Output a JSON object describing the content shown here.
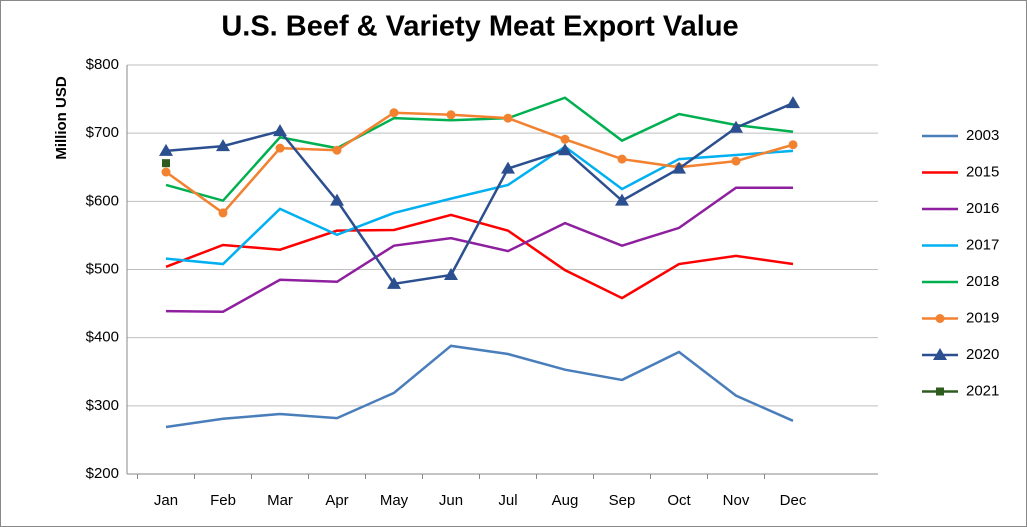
{
  "chart_data": {
    "type": "line",
    "title": "U.S. Beef & Variety Meat Export Value",
    "y_label": "Million USD",
    "categories": [
      "Jan",
      "Feb",
      "Mar",
      "Apr",
      "May",
      "Jun",
      "Jul",
      "Aug",
      "Sep",
      "Oct",
      "Nov",
      "Dec"
    ],
    "ylim": [
      200,
      800
    ],
    "yticks": [
      {
        "value": 200,
        "label": "$200"
      },
      {
        "value": 300,
        "label": "$300"
      },
      {
        "value": 400,
        "label": "$400"
      },
      {
        "value": 500,
        "label": "$500"
      },
      {
        "value": 600,
        "label": "$600"
      },
      {
        "value": 700,
        "label": "$700"
      },
      {
        "value": 800,
        "label": "$800"
      }
    ],
    "grid": true,
    "legend": "right",
    "series": [
      {
        "name": "2003",
        "color": "#4a7ebb",
        "values": [
          269,
          281,
          288,
          282,
          319,
          388,
          376,
          353,
          338,
          379,
          315,
          278
        ]
      },
      {
        "name": "2015",
        "color": "#ff0000",
        "values": [
          504,
          536,
          529,
          557,
          558,
          580,
          557,
          499,
          458,
          508,
          520,
          508
        ]
      },
      {
        "name": "2016",
        "color": "#8e1f9e",
        "values": [
          439,
          438,
          485,
          482,
          535,
          546,
          527,
          568,
          535,
          561,
          620,
          620
        ]
      },
      {
        "name": "2017",
        "color": "#00b0f0",
        "values": [
          516,
          508,
          589,
          551,
          583,
          604,
          624,
          680,
          618,
          662,
          668,
          674
        ]
      },
      {
        "name": "2018",
        "color": "#00b050",
        "values": [
          624,
          601,
          694,
          678,
          722,
          719,
          722,
          752,
          689,
          728,
          712,
          702
        ]
      },
      {
        "name": "2019",
        "color": "#f28130",
        "marker": "circle",
        "values": [
          643,
          583,
          678,
          675,
          730,
          727,
          722,
          691,
          662,
          650,
          659,
          683
        ]
      },
      {
        "name": "2020",
        "color": "#2c4f8f",
        "marker": "triangle",
        "values": [
          674,
          681,
          703,
          601,
          479,
          492,
          648,
          675,
          601,
          648,
          708,
          744
        ]
      },
      {
        "name": "2021",
        "color": "#2e5b1e",
        "marker": "square",
        "values": [
          656,
          null,
          null,
          null,
          null,
          null,
          null,
          null,
          null,
          null,
          null,
          null
        ]
      }
    ]
  }
}
